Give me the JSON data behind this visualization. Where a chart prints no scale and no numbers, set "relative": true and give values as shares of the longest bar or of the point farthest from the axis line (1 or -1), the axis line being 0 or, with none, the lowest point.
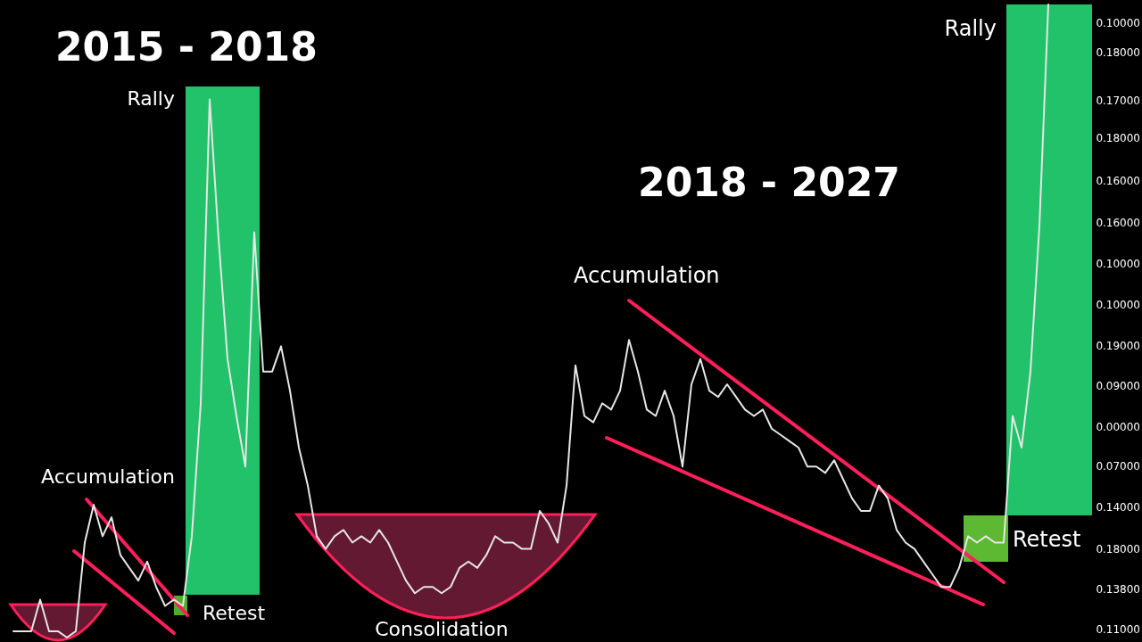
{
  "chart_data": {
    "type": "line",
    "relative": true,
    "categories": [
      null,
      null,
      null,
      null,
      null,
      null,
      null,
      null,
      null,
      null,
      null,
      null,
      null,
      null,
      null,
      null,
      null,
      null,
      null,
      null,
      null,
      null,
      null,
      null,
      null,
      null,
      null,
      null,
      null,
      null,
      null,
      null,
      null,
      null,
      null,
      null,
      null,
      null,
      null,
      null,
      null,
      null,
      null,
      null,
      null,
      null,
      null,
      null,
      null,
      null,
      null,
      null,
      null,
      null,
      null,
      null,
      null,
      null,
      null,
      null,
      null,
      null,
      null,
      null,
      null,
      null,
      null,
      null,
      null,
      null,
      null,
      null,
      null,
      null,
      null,
      null,
      null,
      null,
      null,
      null,
      null,
      null,
      null,
      null,
      null,
      null,
      null,
      null,
      null,
      null,
      null,
      null,
      null,
      null,
      null,
      null,
      null,
      null,
      null,
      null,
      null,
      null,
      null,
      null,
      null,
      null,
      null,
      null,
      null,
      null,
      null,
      null,
      null,
      null,
      null,
      null,
      null
    ],
    "series": [
      {
        "color": "#e6e6e6",
        "values": [
          0.01,
          0.01,
          0.01,
          0.06,
          0.01,
          0.01,
          0,
          0.01,
          0.15,
          0.21,
          0.16,
          0.19,
          0.13,
          0.11,
          0.09,
          0.12,
          0.08,
          0.05,
          0.06,
          0.05,
          0.16,
          0.37,
          0.85,
          0.63,
          0.44,
          0.35,
          0.27,
          0.64,
          0.42,
          0.42,
          0.46,
          0.39,
          0.3,
          0.24,
          0.16,
          0.14,
          0.16,
          0.17,
          0.15,
          0.16,
          0.15,
          0.17,
          0.15,
          0.12,
          0.09,
          0.07,
          0.08,
          0.08,
          0.07,
          0.08,
          0.11,
          0.12,
          0.11,
          0.13,
          0.16,
          0.15,
          0.15,
          0.14,
          0.14,
          0.2,
          0.18,
          0.15,
          0.24,
          0.43,
          0.35,
          0.34,
          0.37,
          0.36,
          0.39,
          0.47,
          0.42,
          0.36,
          0.35,
          0.39,
          0.35,
          0.27,
          0.4,
          0.44,
          0.39,
          0.38,
          0.4,
          0.38,
          0.36,
          0.35,
          0.36,
          0.33,
          0.32,
          0.31,
          0.3,
          0.27,
          0.27,
          0.26,
          0.28,
          0.25,
          0.22,
          0.2,
          0.2,
          0.24,
          0.22,
          0.17,
          0.15,
          0.14,
          0.12,
          0.1,
          0.08,
          0.08,
          0.11,
          0.16,
          0.15,
          0.16,
          0.15,
          0.15,
          0.35,
          0.3,
          0.42,
          0.65,
          1
        ]
      }
    ],
    "annotations": [
      "2015 - 2018",
      "Rally",
      "Accumulation",
      "Retest",
      "Consolidation",
      "2018 - 2027",
      "Accumulation",
      "Rally",
      "Retest",
      "0.10000",
      "0.18000",
      "0.17000",
      "0.18000",
      "0.16000",
      "0.16000",
      "0.10000",
      "0.10000",
      "0.19000",
      "0.09000",
      "0.00000",
      "0.07000",
      "0.14000",
      "0.18000",
      "0.13800",
      "0.11000"
    ]
  }
}
